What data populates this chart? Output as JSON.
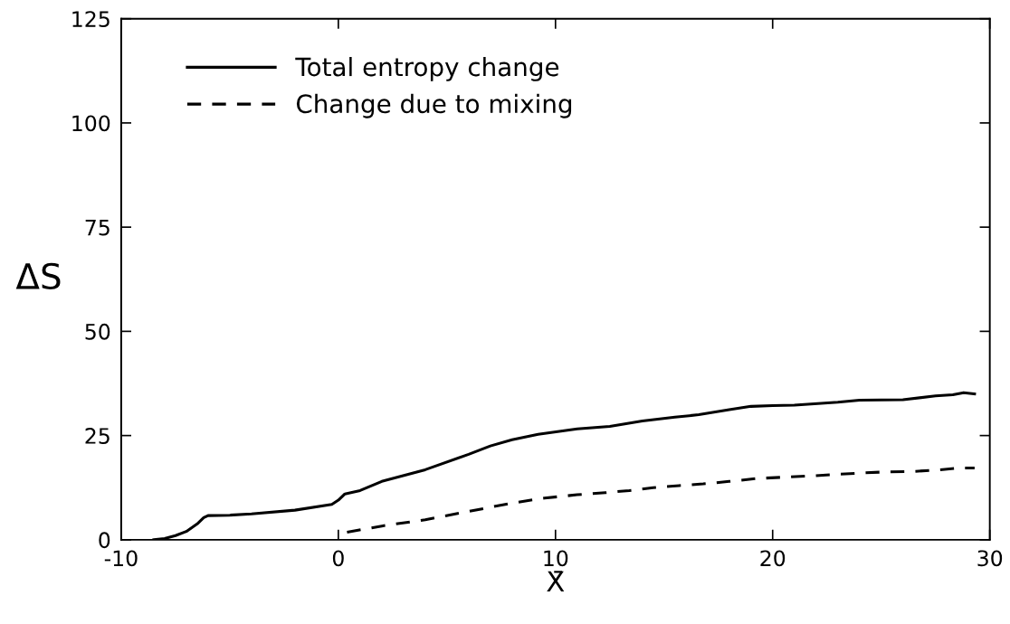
{
  "chart_data": {
    "type": "line",
    "xlabel": "X̄",
    "ylabel": "ΔS",
    "xlim": [
      -10,
      30
    ],
    "ylim": [
      0,
      125
    ],
    "xticks": [
      -10,
      0,
      10,
      20,
      30
    ],
    "yticks": [
      0,
      25,
      50,
      75,
      100,
      125
    ],
    "grid": false,
    "legend": "top left",
    "series": [
      {
        "name": "Total entropy change",
        "color": "#000000",
        "line_style": "solid",
        "x": [
          -8.5,
          -8,
          -7.5,
          -7,
          -6.5,
          -6.2,
          -6,
          -5,
          -4,
          -2,
          -0.3,
          0,
          0.3,
          1,
          2,
          4,
          6,
          7,
          8,
          9.2,
          11,
          12.5,
          14,
          15.5,
          16.6,
          18,
          19,
          20,
          21,
          23,
          24,
          26,
          27.5,
          28.3,
          28.8,
          29.3
        ],
        "values": [
          0,
          0.3,
          1,
          2,
          3.8,
          5.3,
          5.8,
          5.9,
          6.2,
          7.1,
          8.5,
          9.5,
          11,
          11.8,
          14,
          16.8,
          20.5,
          22.5,
          24,
          25.3,
          26.6,
          27.2,
          28.5,
          29.4,
          30,
          31.2,
          32,
          32.2,
          32.3,
          33,
          33.5,
          33.6,
          34.5,
          34.8,
          35.3,
          35
        ]
      },
      {
        "name": "Change due to mixing",
        "color": "#000000",
        "line_style": "dashed",
        "x": [
          0.4,
          2,
          4,
          6,
          8,
          9.5,
          11,
          12.3,
          13.4,
          14.5,
          15.7,
          16.8,
          18,
          19.3,
          20.5,
          21.7,
          23,
          24,
          25.3,
          26.5,
          27.5,
          28.6,
          29.3
        ],
        "values": [
          1.8,
          3.3,
          4.8,
          6.8,
          8.8,
          10,
          10.8,
          11.3,
          11.8,
          12.5,
          13,
          13.4,
          14,
          14.7,
          15,
          15.3,
          15.7,
          16,
          16.3,
          16.4,
          16.7,
          17.2,
          17.2
        ]
      }
    ]
  }
}
